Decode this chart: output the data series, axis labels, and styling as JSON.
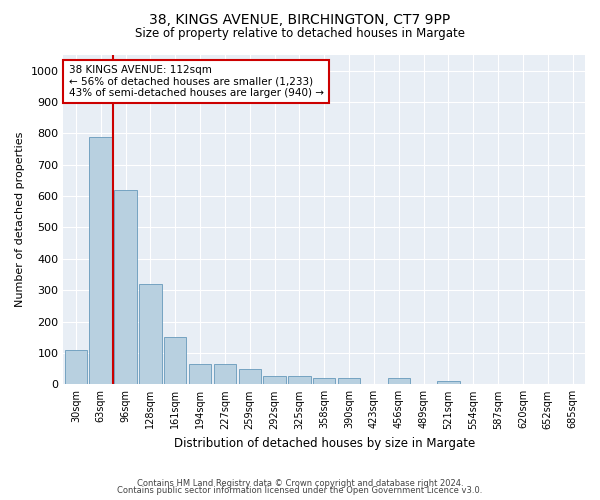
{
  "title_line1": "38, KINGS AVENUE, BIRCHINGTON, CT7 9PP",
  "title_line2": "Size of property relative to detached houses in Margate",
  "xlabel": "Distribution of detached houses by size in Margate",
  "ylabel": "Number of detached properties",
  "categories": [
    "30sqm",
    "63sqm",
    "96sqm",
    "128sqm",
    "161sqm",
    "194sqm",
    "227sqm",
    "259sqm",
    "292sqm",
    "325sqm",
    "358sqm",
    "390sqm",
    "423sqm",
    "456sqm",
    "489sqm",
    "521sqm",
    "554sqm",
    "587sqm",
    "620sqm",
    "652sqm",
    "685sqm"
  ],
  "values": [
    110,
    790,
    620,
    320,
    150,
    65,
    65,
    50,
    25,
    25,
    20,
    20,
    0,
    20,
    0,
    10,
    0,
    0,
    0,
    0,
    0
  ],
  "bar_color": "#b8d0e0",
  "bar_edge_color": "#6699bb",
  "bg_color": "#e8eef5",
  "grid_color": "#ffffff",
  "annotation_box_color": "#cc0000",
  "annotation_text": "38 KINGS AVENUE: 112sqm\n← 56% of detached houses are smaller (1,233)\n43% of semi-detached houses are larger (940) →",
  "property_line_color": "#cc0000",
  "property_line_x": 1.5,
  "ylim": [
    0,
    1050
  ],
  "yticks": [
    0,
    100,
    200,
    300,
    400,
    500,
    600,
    700,
    800,
    900,
    1000
  ],
  "footer_line1": "Contains HM Land Registry data © Crown copyright and database right 2024.",
  "footer_line2": "Contains public sector information licensed under the Open Government Licence v3.0."
}
